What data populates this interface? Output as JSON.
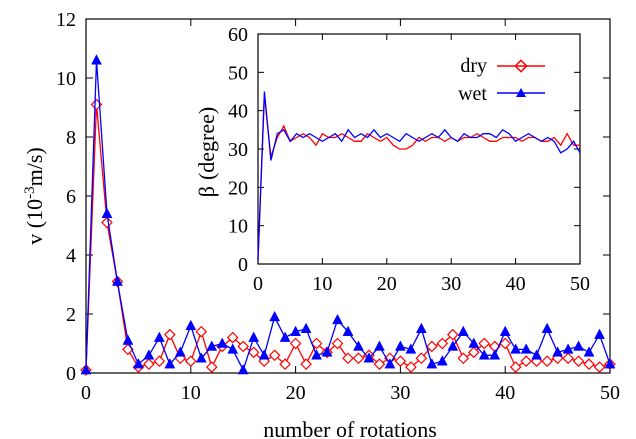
{
  "chart_data": [
    {
      "type": "line",
      "xlabel": "number of rotations",
      "ylabel_pre": "v (10",
      "ylabel_sup": "-3",
      "ylabel_post": "m/s)",
      "xlim": [
        0,
        50
      ],
      "ylim": [
        0,
        12
      ],
      "xticks": [
        0,
        10,
        20,
        30,
        40,
        50
      ],
      "yticks": [
        0,
        2,
        4,
        6,
        8,
        10,
        12
      ],
      "grid": false,
      "series": [
        {
          "name": "dry",
          "color": "#ff0000",
          "marker": "diamond-open",
          "x": [
            0,
            1,
            2,
            3,
            4,
            5,
            6,
            7,
            8,
            9,
            10,
            11,
            12,
            13,
            14,
            15,
            16,
            17,
            18,
            19,
            20,
            21,
            22,
            23,
            24,
            25,
            26,
            27,
            28,
            29,
            30,
            31,
            32,
            33,
            34,
            35,
            36,
            37,
            38,
            39,
            40,
            41,
            42,
            43,
            44,
            45,
            46,
            47,
            48,
            49,
            50
          ],
          "values": [
            0.1,
            9.1,
            5.1,
            3.1,
            0.8,
            0.2,
            0.3,
            0.4,
            1.3,
            0.5,
            0.4,
            1.4,
            0.2,
            0.9,
            1.2,
            0.9,
            0.7,
            0.4,
            0.6,
            0.3,
            1.0,
            0.3,
            1.0,
            0.7,
            1.0,
            0.5,
            0.5,
            0.6,
            0.3,
            0.5,
            0.4,
            0.2,
            0.5,
            0.9,
            1.0,
            1.3,
            0.5,
            0.7,
            1.0,
            0.9,
            1.0,
            0.2,
            0.4,
            0.4,
            0.4,
            0.5,
            0.5,
            0.4,
            0.3,
            0.2,
            0.3
          ]
        },
        {
          "name": "wet",
          "color": "#0000ff",
          "marker": "triangle-filled",
          "x": [
            0,
            1,
            2,
            3,
            4,
            5,
            6,
            7,
            8,
            9,
            10,
            11,
            12,
            13,
            14,
            15,
            16,
            17,
            18,
            19,
            20,
            21,
            22,
            23,
            24,
            25,
            26,
            27,
            28,
            29,
            30,
            31,
            32,
            33,
            34,
            35,
            36,
            37,
            38,
            39,
            40,
            41,
            42,
            43,
            44,
            45,
            46,
            47,
            48,
            49,
            50
          ],
          "values": [
            0.1,
            10.6,
            5.4,
            3.1,
            1.1,
            0.3,
            0.6,
            1.2,
            0.3,
            0.7,
            1.6,
            0.5,
            0.9,
            1.0,
            0.8,
            0.1,
            1.2,
            0.6,
            1.9,
            1.2,
            1.4,
            1.5,
            0.6,
            0.7,
            1.8,
            1.4,
            0.9,
            0.5,
            0.9,
            0.3,
            0.9,
            0.8,
            1.5,
            0.3,
            0.4,
            0.9,
            1.4,
            1.0,
            0.6,
            0.6,
            1.4,
            0.8,
            0.8,
            0.6,
            1.5,
            0.7,
            0.8,
            0.9,
            0.7,
            1.3,
            0.3
          ]
        }
      ]
    },
    {
      "type": "line",
      "inset": true,
      "ylabel_greek": "β",
      "ylabel_text": "(degree)",
      "xlim": [
        0,
        50
      ],
      "ylim": [
        0,
        60
      ],
      "xticks": [
        0,
        10,
        20,
        30,
        40,
        50
      ],
      "yticks": [
        0,
        10,
        20,
        30,
        40,
        50,
        60
      ],
      "grid": false,
      "legend": {
        "position": "top-right",
        "entries": [
          "dry",
          "wet"
        ]
      },
      "series": [
        {
          "name": "dry",
          "color": "#ff0000",
          "marker": "none",
          "x": [
            0,
            1,
            2,
            3,
            4,
            5,
            6,
            7,
            8,
            9,
            10,
            11,
            12,
            13,
            14,
            15,
            16,
            17,
            18,
            19,
            20,
            21,
            22,
            23,
            24,
            25,
            26,
            27,
            28,
            29,
            30,
            31,
            32,
            33,
            34,
            35,
            36,
            37,
            38,
            39,
            40,
            41,
            42,
            43,
            44,
            45,
            46,
            47,
            48,
            49,
            50
          ],
          "values": [
            1,
            44,
            28,
            33,
            36,
            32,
            33,
            34,
            33,
            31,
            34,
            33,
            33,
            34,
            33,
            32,
            32,
            34,
            33,
            32,
            33,
            31,
            30,
            30,
            31,
            33,
            32,
            33,
            33,
            32,
            33,
            32,
            33,
            33,
            34,
            33,
            32,
            32,
            33,
            33,
            33,
            32,
            33,
            33,
            32,
            32,
            33,
            31,
            34,
            31,
            31
          ]
        },
        {
          "name": "wet",
          "color": "#0000ff",
          "marker": "none",
          "x": [
            0,
            1,
            2,
            3,
            4,
            5,
            6,
            7,
            8,
            9,
            10,
            11,
            12,
            13,
            14,
            15,
            16,
            17,
            18,
            19,
            20,
            21,
            22,
            23,
            24,
            25,
            26,
            27,
            28,
            29,
            30,
            31,
            32,
            33,
            34,
            35,
            36,
            37,
            38,
            39,
            40,
            41,
            42,
            43,
            44,
            45,
            46,
            47,
            48,
            49,
            50
          ],
          "values": [
            1,
            45,
            27,
            34,
            35,
            32,
            34,
            33,
            34,
            33,
            32,
            33,
            34,
            32,
            35,
            33,
            34,
            33,
            35,
            33,
            34,
            33,
            32,
            34,
            33,
            32,
            33,
            34,
            33,
            35,
            33,
            32,
            34,
            33,
            33,
            34,
            34,
            33,
            35,
            34,
            32,
            33,
            34,
            33,
            32,
            33,
            32,
            29,
            30,
            32,
            29
          ]
        }
      ]
    }
  ]
}
